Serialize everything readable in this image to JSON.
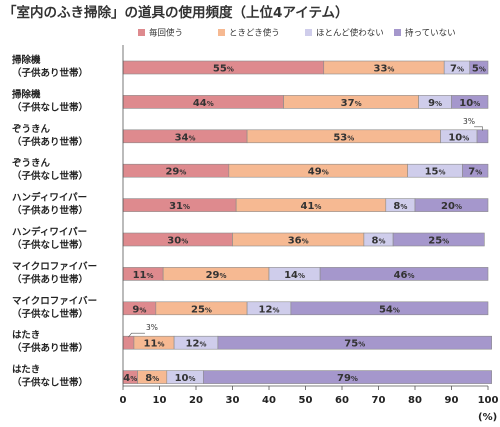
{
  "chart_data": {
    "type": "bar",
    "stacked": true,
    "orientation": "horizontal",
    "title": "「室内のふき掃除」の道具の使用頻度（上位4アイテム）",
    "categories": [
      [
        "掃除機",
        "（子供あり世帯）"
      ],
      [
        "掃除機",
        "（子供なし世帯）"
      ],
      [
        "ぞうきん",
        "（子供あり世帯）"
      ],
      [
        "ぞうきん",
        "（子供なし世帯）"
      ],
      [
        "ハンディワイパー",
        "（子供あり世帯）"
      ],
      [
        "ハンディワイパー",
        "（子供なし世帯）"
      ],
      [
        "マイクロファイバー",
        "（子供あり世帯）"
      ],
      [
        "マイクロファイバー",
        "（子供なし世帯）"
      ],
      [
        "はたき",
        "（子供あり世帯）"
      ],
      [
        "はたき",
        "（子供なし世帯）"
      ]
    ],
    "series": [
      {
        "name": "毎回使う",
        "color": "#de8a8e",
        "values": [
          55,
          44,
          34,
          29,
          31,
          30,
          11,
          9,
          3,
          4
        ]
      },
      {
        "name": "ときどき使う",
        "color": "#f6b992",
        "values": [
          33,
          37,
          53,
          49,
          41,
          36,
          29,
          25,
          11,
          8
        ]
      },
      {
        "name": "ほとんど使わない",
        "color": "#cfcdeb",
        "values": [
          7,
          9,
          10,
          15,
          8,
          8,
          14,
          12,
          12,
          10
        ]
      },
      {
        "name": "持っていない",
        "color": "#a597cc",
        "values": [
          5,
          10,
          3,
          7,
          20,
          25,
          46,
          54,
          75,
          79
        ]
      }
    ],
    "xlim": [
      0,
      100
    ],
    "xticks": [
      0,
      10,
      20,
      30,
      40,
      50,
      60,
      70,
      80,
      90,
      100
    ],
    "xlabel": "(%)",
    "pct_suffix": "%",
    "legend_position": "top",
    "grid": false
  }
}
